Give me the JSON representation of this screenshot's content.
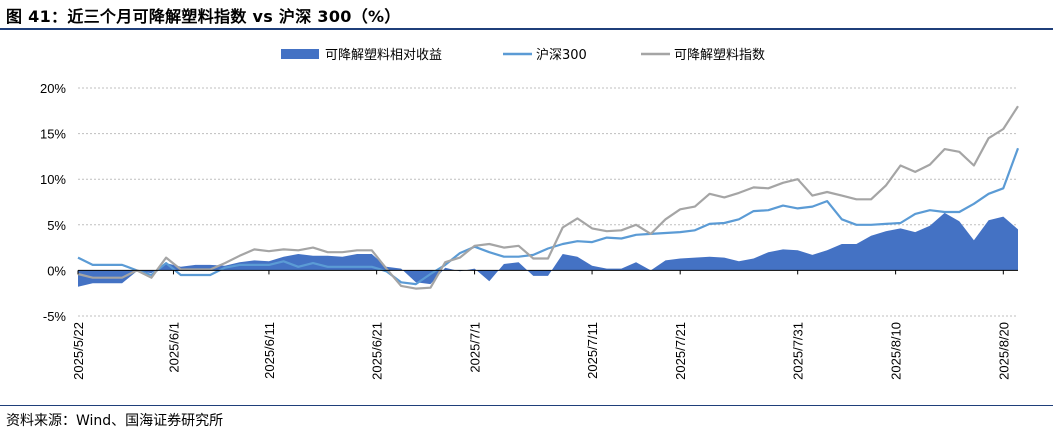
{
  "header": {
    "title": "图 41：近三个月可降解塑料指数 vs 沪深 300（%）"
  },
  "footer": {
    "source": "资料来源：Wind、国海证券研究所"
  },
  "chart_data": {
    "type": "line",
    "title": "",
    "xlabel": "",
    "ylabel": "",
    "ylim": [
      -5,
      20
    ],
    "yticks": [
      "-5%",
      "0%",
      "5%",
      "10%",
      "15%",
      "20%"
    ],
    "ytick_values": [
      -5,
      0,
      5,
      10,
      15,
      20
    ],
    "xticks": [
      "2025/5/22",
      "2025/6/1",
      "2025/6/11",
      "2025/6/21",
      "2025/7/1",
      "2025/7/11",
      "2025/7/21",
      "2025/7/31",
      "2025/8/10",
      "2025/8/20"
    ],
    "grid": "horizontal-dotted",
    "legend_position": "top-center",
    "colors": {
      "relative": "#4472c4",
      "hs300": "#5b9bd5",
      "index": "#a5a5a5"
    },
    "x": [
      "2025/5/22",
      "2025/5/23",
      "2025/5/26",
      "2025/5/27",
      "2025/5/28",
      "2025/5/29",
      "2025/5/30",
      "2025/6/3",
      "2025/6/4",
      "2025/6/5",
      "2025/6/6",
      "2025/6/9",
      "2025/6/10",
      "2025/6/11",
      "2025/6/12",
      "2025/6/13",
      "2025/6/16",
      "2025/6/17",
      "2025/6/18",
      "2025/6/19",
      "2025/6/20",
      "2025/6/23",
      "2025/6/24",
      "2025/6/25",
      "2025/6/26",
      "2025/6/27",
      "2025/6/30",
      "2025/7/1",
      "2025/7/2",
      "2025/7/3",
      "2025/7/4",
      "2025/7/7",
      "2025/7/8",
      "2025/7/9",
      "2025/7/10",
      "2025/7/11",
      "2025/7/14",
      "2025/7/15",
      "2025/7/16",
      "2025/7/17",
      "2025/7/18",
      "2025/7/21",
      "2025/7/22",
      "2025/7/23",
      "2025/7/24",
      "2025/7/25",
      "2025/7/28",
      "2025/7/29",
      "2025/7/30",
      "2025/7/31",
      "2025/8/1",
      "2025/8/4",
      "2025/8/5",
      "2025/8/6",
      "2025/8/7",
      "2025/8/8",
      "2025/8/11",
      "2025/8/12",
      "2025/8/13",
      "2025/8/14",
      "2025/8/15",
      "2025/8/18",
      "2025/8/19",
      "2025/8/20",
      "2025/8/21"
    ],
    "series": [
      {
        "name": "可降解塑料相对收益",
        "kind": "area",
        "values": [
          -1.8,
          -1.4,
          -1.4,
          -1.4,
          -0.1,
          -0.3,
          0.8,
          0.4,
          0.6,
          0.6,
          0.5,
          0.9,
          1.1,
          1.0,
          1.5,
          1.8,
          1.6,
          1.6,
          1.5,
          1.8,
          1.8,
          0.4,
          0.2,
          -1.3,
          -1.5,
          0.3,
          -0.1,
          0.2,
          -1.2,
          0.7,
          0.9,
          -0.6,
          -0.6,
          1.8,
          1.5,
          0.5,
          0.2,
          0.2,
          0.9,
          0.0,
          1.1,
          1.3,
          1.4,
          1.5,
          1.4,
          1.0,
          1.3,
          2.0,
          2.3,
          2.2,
          1.7,
          2.2,
          2.9,
          2.9,
          3.8,
          4.3,
          4.6,
          4.2,
          4.9,
          6.3,
          5.4,
          3.3,
          5.5,
          5.9,
          4.5
        ]
      },
      {
        "name": "沪深300",
        "kind": "line",
        "values": [
          1.4,
          0.6,
          0.6,
          0.6,
          0.0,
          -0.5,
          0.8,
          -0.5,
          -0.5,
          -0.5,
          0.3,
          0.6,
          0.6,
          0.6,
          1.0,
          0.4,
          0.8,
          0.4,
          0.4,
          0.4,
          0.4,
          -0.1,
          -1.3,
          -1.5,
          -0.4,
          0.6,
          1.9,
          2.6,
          2.0,
          1.5,
          1.5,
          1.7,
          2.4,
          2.9,
          3.2,
          3.1,
          3.6,
          3.5,
          3.9,
          4.0,
          4.1,
          4.2,
          4.4,
          5.1,
          5.2,
          5.6,
          6.5,
          6.6,
          7.1,
          6.8,
          7.0,
          7.6,
          5.6,
          5.0,
          5.0,
          5.1,
          5.2,
          6.2,
          6.6,
          6.4,
          6.4,
          7.3,
          8.4,
          9.0,
          13.4
        ]
      },
      {
        "name": "可降解塑料指数",
        "kind": "line",
        "values": [
          -0.4,
          -0.8,
          -0.8,
          -0.8,
          0.0,
          -0.8,
          1.4,
          0.1,
          0.1,
          0.1,
          0.8,
          1.6,
          2.3,
          2.1,
          2.3,
          2.2,
          2.5,
          2.0,
          2.0,
          2.2,
          2.2,
          0.2,
          -1.7,
          -2.0,
          -1.9,
          0.9,
          1.4,
          2.7,
          2.9,
          2.5,
          2.7,
          1.3,
          1.3,
          4.7,
          5.7,
          4.6,
          4.3,
          4.4,
          5.0,
          4.0,
          5.6,
          6.7,
          7.0,
          8.4,
          8.0,
          8.5,
          9.1,
          9.0,
          9.6,
          10.0,
          8.2,
          8.6,
          8.2,
          7.8,
          7.8,
          9.3,
          11.5,
          10.8,
          11.6,
          13.3,
          13.0,
          11.5,
          14.5,
          15.5,
          18.0
        ]
      }
    ]
  }
}
